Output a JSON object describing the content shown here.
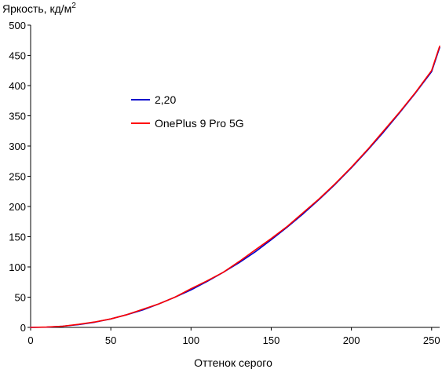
{
  "chart_data": {
    "type": "line",
    "title": "",
    "ylabel": "Яркость, кд/м",
    "ylabel_sup": "2",
    "xlabel": "Оттенок серого",
    "xlim": [
      0,
      255
    ],
    "ylim": [
      0,
      500
    ],
    "xticks": [
      0,
      50,
      100,
      150,
      200,
      250
    ],
    "yticks": [
      0,
      50,
      100,
      150,
      200,
      250,
      300,
      350,
      400,
      450,
      500
    ],
    "grid": false,
    "legend_position": "upper-left",
    "series": [
      {
        "name": "2,20",
        "color": "#0000cc",
        "x": [
          0,
          10,
          20,
          30,
          40,
          50,
          60,
          70,
          80,
          90,
          100,
          110,
          120,
          130,
          140,
          150,
          160,
          170,
          180,
          190,
          200,
          210,
          220,
          230,
          240,
          250,
          255
        ],
        "y": [
          0,
          0.4,
          1.9,
          4.6,
          8.6,
          14,
          21,
          29,
          39,
          50,
          62,
          76,
          91,
          107,
          125,
          145,
          166,
          188,
          212,
          237,
          264,
          293,
          323,
          355,
          388,
          423,
          463
        ]
      },
      {
        "name": "OnePlus 9 Pro 5G",
        "color": "#ff0000",
        "x": [
          0,
          10,
          20,
          30,
          40,
          50,
          60,
          70,
          80,
          90,
          100,
          110,
          120,
          130,
          140,
          150,
          160,
          170,
          180,
          190,
          200,
          210,
          220,
          230,
          240,
          250,
          255
        ],
        "y": [
          0,
          0.5,
          2,
          5,
          9,
          14,
          21,
          30,
          39,
          50,
          64,
          77,
          91,
          109,
          128,
          147,
          167,
          190,
          213,
          238,
          265,
          294,
          325,
          356,
          389,
          425,
          465
        ]
      }
    ]
  }
}
